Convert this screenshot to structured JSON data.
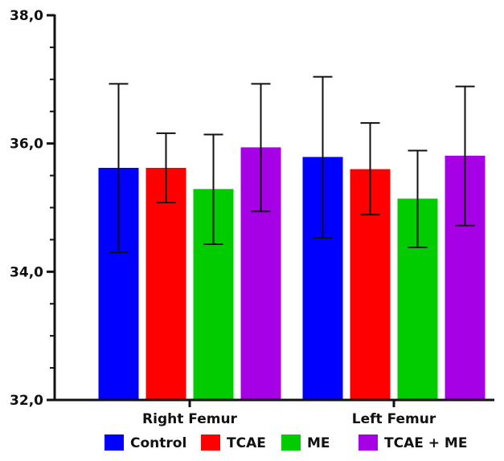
{
  "chart_data": {
    "type": "bar",
    "categories": [
      "Right Femur",
      "Left Femur"
    ],
    "series": [
      {
        "name": "Control",
        "color": "#0000ff",
        "values": [
          35.62,
          35.79
        ],
        "error_low": [
          34.3,
          34.53
        ],
        "error_high": [
          36.93,
          37.04
        ]
      },
      {
        "name": "TCAE",
        "color": "#ff0000",
        "values": [
          35.62,
          35.6
        ],
        "error_low": [
          35.08,
          34.89
        ],
        "error_high": [
          36.16,
          36.32
        ]
      },
      {
        "name": "ME",
        "color": "#00cc00",
        "values": [
          35.29,
          35.14
        ],
        "error_low": [
          34.43,
          34.38
        ],
        "error_high": [
          36.14,
          35.89
        ]
      },
      {
        "name": "TCAE + ME",
        "color": "#a600e6",
        "values": [
          35.94,
          35.81
        ],
        "error_low": [
          34.94,
          34.72
        ],
        "error_high": [
          36.93,
          36.89
        ]
      }
    ],
    "ylim": [
      32,
      38
    ],
    "yticks": [
      "32,0",
      "34,0",
      "36,0",
      "38,0"
    ],
    "ytick_values": [
      32,
      34,
      36,
      38
    ],
    "minor_ticks_per_major": 4,
    "grid": false,
    "legend": "bottom",
    "title": "",
    "xlabel": "",
    "ylabel": ""
  }
}
